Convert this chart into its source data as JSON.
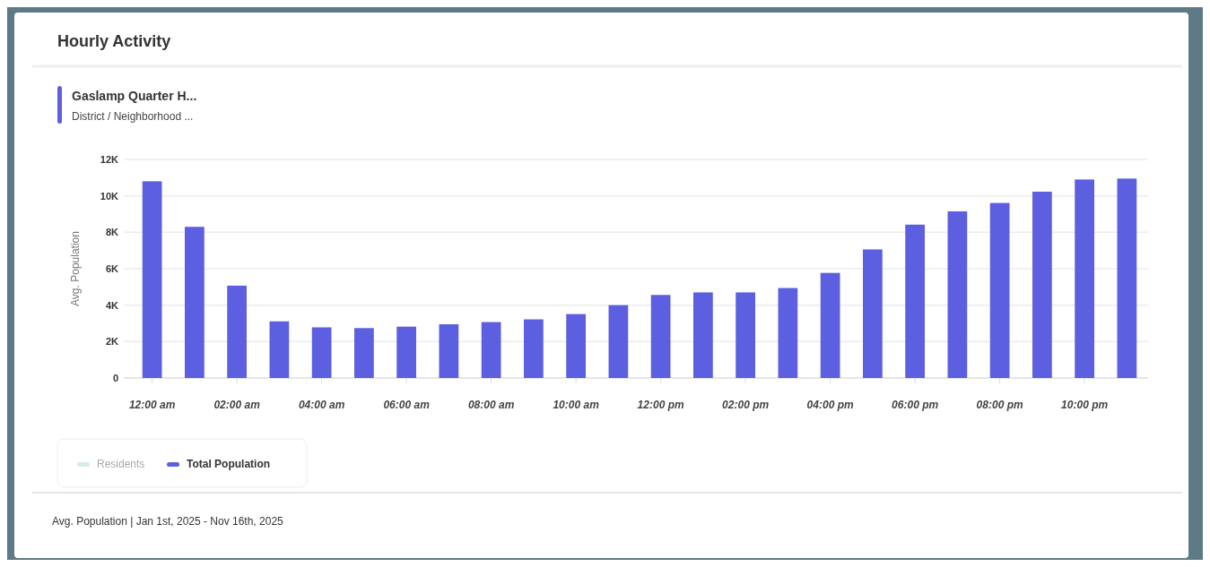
{
  "chart_data": {
    "type": "bar",
    "title": "Hourly Activity",
    "subtitle": "Gaslamp Quarter H...",
    "annotations": [
      "District / Neighborhood ...",
      "Avg. Population | Jan 1st, 2025 - Nov 16th, 2025"
    ],
    "ylabel": "Avg. Population",
    "categories": [
      "12:00 am",
      null,
      "02:00 am",
      null,
      "04:00 am",
      null,
      "06:00 am",
      null,
      "08:00 am",
      null,
      "10:00 am",
      null,
      "12:00 pm",
      null,
      "02:00 pm",
      null,
      "04:00 pm",
      null,
      "06:00 pm",
      null,
      "08:00 pm",
      null,
      "10:00 pm",
      null
    ],
    "series": [
      {
        "name": "Residents",
        "color": "#d6ede6",
        "values": [
          null,
          null,
          null,
          null,
          null,
          null,
          null,
          null,
          null,
          null,
          null,
          null,
          null,
          null,
          null,
          null,
          null,
          null,
          null,
          null,
          null,
          null,
          null,
          null
        ]
      },
      {
        "name": "Total Population",
        "color": "#5b5fe0",
        "values": [
          10800,
          8300,
          5070,
          3110,
          2780,
          2740,
          2820,
          2950,
          3070,
          3220,
          3510,
          4000,
          4560,
          4700,
          4700,
          4940,
          5770,
          7060,
          8420,
          9150,
          9610,
          10230,
          10900,
          10950
        ]
      }
    ],
    "ylim": [
      0,
      12000
    ],
    "yticks": [
      0,
      {
        "value": 2000,
        "label": "2K"
      },
      {
        "value": 4000,
        "label": "4K"
      },
      {
        "value": 6000,
        "label": "6K"
      },
      {
        "value": 8000,
        "label": "8K"
      },
      {
        "value": 10000,
        "label": "10K"
      },
      {
        "value": 12000,
        "label": "12K"
      }
    ],
    "grid": "y",
    "legend": "bottom left"
  }
}
